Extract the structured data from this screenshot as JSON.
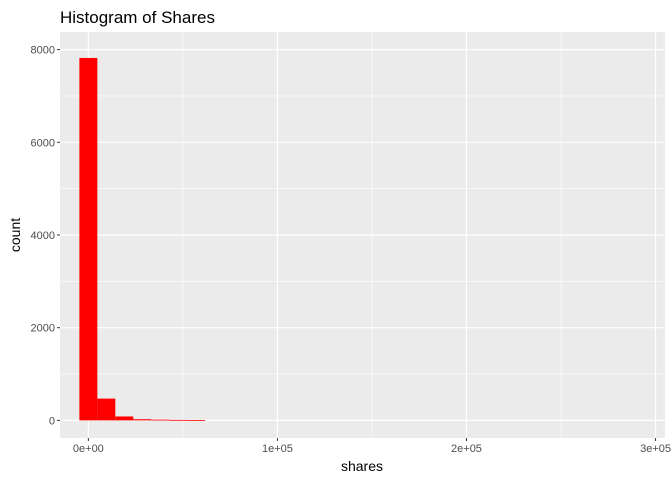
{
  "chart_data": {
    "type": "bar",
    "title": "Histogram of Shares",
    "xlabel": "shares",
    "ylabel": "count",
    "xlim": [
      -15000,
      305000
    ],
    "ylim": [
      -380,
      8380
    ],
    "x_ticks": [
      0,
      100000,
      200000,
      300000
    ],
    "x_tick_labels": [
      "0e+00",
      "1e+05",
      "2e+05",
      "3e+05"
    ],
    "y_ticks": [
      0,
      2000,
      4000,
      6000,
      8000
    ],
    "y_tick_labels": [
      "0",
      "2000",
      "4000",
      "6000",
      "8000"
    ],
    "bin_width": 9500,
    "bins": [
      {
        "x0": -4750,
        "x1": 4750,
        "count": 7820
      },
      {
        "x0": 4750,
        "x1": 14250,
        "count": 470
      },
      {
        "x0": 14250,
        "x1": 23750,
        "count": 85
      },
      {
        "x0": 23750,
        "x1": 33250,
        "count": 25
      },
      {
        "x0": 33250,
        "x1": 42750,
        "count": 15
      },
      {
        "x0": 42750,
        "x1": 52250,
        "count": 10
      },
      {
        "x0": 52250,
        "x1": 61750,
        "count": 6
      }
    ],
    "grid": true,
    "colors": {
      "bar_fill": "#ff0000",
      "panel_bg": "#ebebeb",
      "grid_line": "#ffffff",
      "tick_label": "#4d4d4d",
      "title": "#000000"
    }
  }
}
